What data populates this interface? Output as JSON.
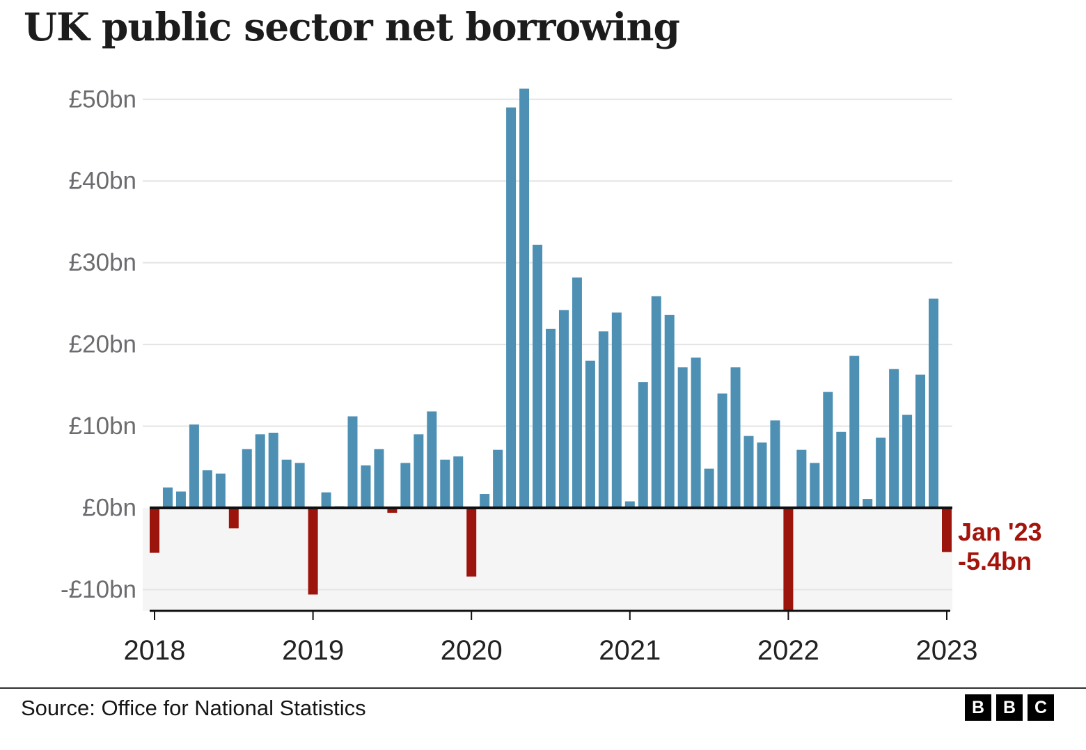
{
  "title": "UK public sector net borrowing",
  "source": "Source: Office for National Statistics",
  "bbc_logo": [
    "B",
    "B",
    "C"
  ],
  "annotation": {
    "line1": "Jan '23",
    "line2": "-5.4bn"
  },
  "colors": {
    "positive_bar": "#4d90b4",
    "negative_bar": "#9c150d",
    "grid": "#e4e4e4",
    "zero_line": "#111111",
    "axis_line": "#111111",
    "below_zero_band": "#f5f5f5",
    "annotation_text": "#a3140c",
    "ytick_text": "#6c6c70",
    "xtick_text": "#222222"
  },
  "chart_data": {
    "type": "bar",
    "title": "UK public sector net borrowing",
    "unit": "£bn",
    "frequency": "monthly",
    "x_start": "2018-01",
    "x_end": "2023-01",
    "ylim": [
      -13.5,
      53
    ],
    "grid": true,
    "values": [
      -5.5,
      2.5,
      2.0,
      10.2,
      4.6,
      4.2,
      -2.5,
      7.2,
      9.0,
      9.2,
      5.9,
      5.5,
      -10.6,
      1.9,
      0.2,
      11.2,
      5.2,
      7.2,
      -0.6,
      5.5,
      9.0,
      11.8,
      5.9,
      6.3,
      -8.4,
      1.7,
      7.1,
      49.0,
      51.3,
      32.2,
      21.9,
      24.2,
      28.2,
      18.0,
      21.6,
      23.9,
      0.8,
      15.4,
      25.9,
      23.6,
      17.2,
      18.4,
      4.8,
      14.0,
      17.2,
      8.8,
      8.0,
      10.7,
      -12.6,
      7.1,
      5.5,
      14.2,
      9.3,
      18.6,
      1.1,
      8.6,
      17.0,
      11.4,
      16.3,
      25.6,
      -5.4
    ],
    "year_ticks": [
      {
        "index": 0,
        "label": "2018"
      },
      {
        "index": 12,
        "label": "2019"
      },
      {
        "index": 24,
        "label": "2020"
      },
      {
        "index": 36,
        "label": "2021"
      },
      {
        "index": 48,
        "label": "2022"
      },
      {
        "index": 60,
        "label": "2023"
      }
    ],
    "y_ticks": [
      {
        "value": 50,
        "label": "£50bn"
      },
      {
        "value": 40,
        "label": "£40bn"
      },
      {
        "value": 30,
        "label": "£30bn"
      },
      {
        "value": 20,
        "label": "£20bn"
      },
      {
        "value": 10,
        "label": "£10bn"
      },
      {
        "value": 0,
        "label": "£0bn"
      },
      {
        "value": -10,
        "label": "-£10bn"
      }
    ],
    "annotated_point": {
      "label": "Jan '23",
      "value": -5.4
    }
  }
}
